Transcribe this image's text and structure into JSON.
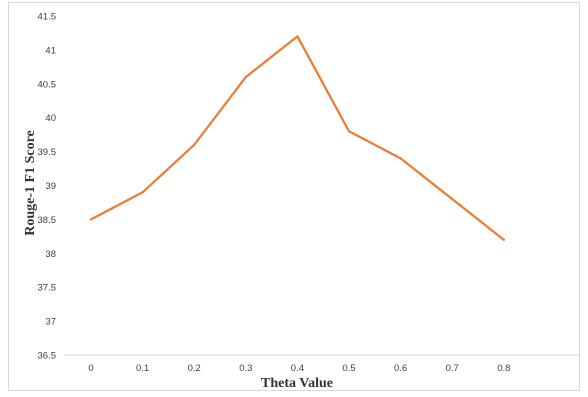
{
  "chart_data": {
    "type": "line",
    "xlabel": "Theta Value",
    "ylabel": "Rouge-1 F1 Score",
    "categories": [
      "0",
      "0.1",
      "0.2",
      "0.3",
      "0.4",
      "0.5",
      "0.6",
      "0.7",
      "0.8"
    ],
    "x": [
      0,
      0.1,
      0.2,
      0.3,
      0.4,
      0.5,
      0.6,
      0.7,
      0.8
    ],
    "series": [
      {
        "values": [
          38.5,
          38.9,
          39.6,
          40.6,
          41.2,
          39.8,
          39.4,
          38.8,
          38.2
        ],
        "color": "#ed7d31"
      }
    ],
    "ylim": [
      36.5,
      41.5
    ],
    "yticks": [
      "36.5",
      "37",
      "37.5",
      "38",
      "38.5",
      "39",
      "39.5",
      "40",
      "40.5",
      "41",
      "41.5"
    ],
    "grid": false,
    "legend": "none"
  }
}
